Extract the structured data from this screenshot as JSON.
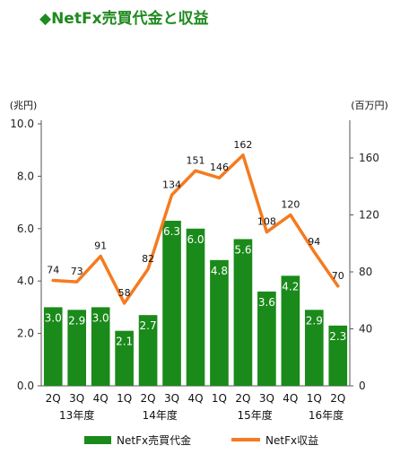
{
  "title": "◆NetFx売買代金と収益",
  "colors": {
    "title": "#1f8a1f",
    "bar": "#1a8a1a",
    "line": "#f47b20"
  },
  "chart_data": {
    "type": "bar+line",
    "categories": [
      "2Q",
      "3Q",
      "4Q",
      "1Q",
      "2Q",
      "3Q",
      "4Q",
      "1Q",
      "2Q",
      "3Q",
      "4Q",
      "1Q",
      "2Q"
    ],
    "year_groups": [
      {
        "label": "13年度",
        "start": 0,
        "end": 2
      },
      {
        "label": "14年度",
        "start": 3,
        "end": 6
      },
      {
        "label": "15年度",
        "start": 7,
        "end": 10
      },
      {
        "label": "16年度",
        "start": 11,
        "end": 12
      }
    ],
    "series": [
      {
        "name": "NetFx売買代金",
        "type": "bar",
        "axis": "left",
        "values": [
          3.0,
          2.9,
          3.0,
          2.1,
          2.7,
          6.3,
          6.0,
          4.8,
          5.6,
          3.6,
          4.2,
          2.9,
          2.3
        ],
        "labels": [
          "3.0",
          "2.9",
          "3.0",
          "2.1",
          "2.7",
          "6.3",
          "6.0",
          "4.8",
          "5.6",
          "3.6",
          "4.2",
          "2.9",
          "2.3"
        ]
      },
      {
        "name": "NetFx収益",
        "type": "line",
        "axis": "right",
        "values": [
          74,
          73,
          91,
          58,
          82,
          134,
          151,
          146,
          162,
          108,
          120,
          94,
          70
        ],
        "labels": [
          "74",
          "73",
          "91",
          "58",
          "82",
          "134",
          "151",
          "146",
          "162",
          "108",
          "120",
          "94",
          "70"
        ]
      }
    ],
    "y_left": {
      "unit": "(兆円)",
      "range": [
        0,
        10
      ],
      "ticks": [
        "0.0",
        "2.0",
        "4.0",
        "6.0",
        "8.0",
        "10.0"
      ]
    },
    "y_right": {
      "unit": "(百万円)",
      "range": [
        0,
        160
      ],
      "ticks": [
        "0",
        "40",
        "80",
        "120",
        "160"
      ]
    },
    "legend": {
      "position": "bottom"
    }
  }
}
